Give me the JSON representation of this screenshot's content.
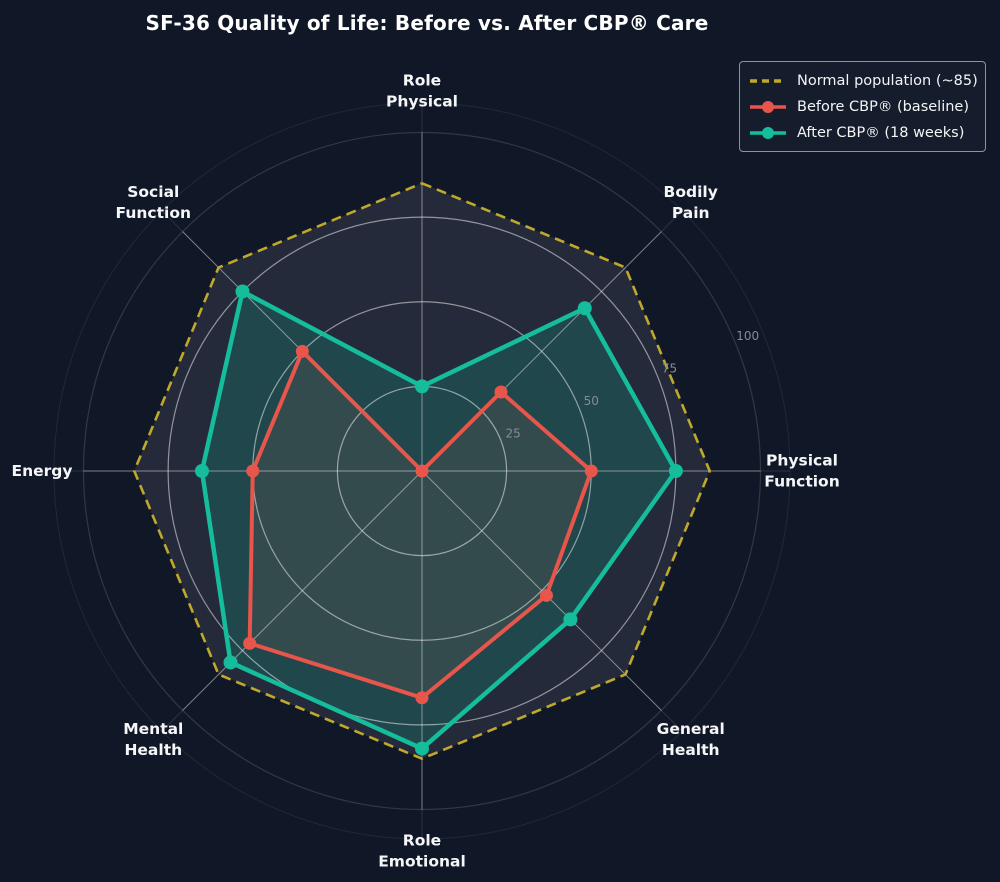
{
  "chart_data": {
    "type": "radar",
    "title": "SF-36 Quality of Life: Before vs. After CBP® Care",
    "axes": [
      {
        "label": "Role Physical",
        "lines": [
          "Role",
          "Physical"
        ]
      },
      {
        "label": "Bodily Pain",
        "lines": [
          "Bodily",
          "Pain"
        ]
      },
      {
        "label": "Physical Function",
        "lines": [
          "Physical",
          "Function"
        ]
      },
      {
        "label": "General Health",
        "lines": [
          "General",
          "Health"
        ]
      },
      {
        "label": "Role Emotional",
        "lines": [
          "Role",
          "Emotional"
        ]
      },
      {
        "label": "Mental Health",
        "lines": [
          "Mental",
          "Health"
        ]
      },
      {
        "label": "Energy",
        "lines": [
          "Energy"
        ]
      },
      {
        "label": "Social Function",
        "lines": [
          "Social",
          "Function"
        ]
      }
    ],
    "r_axis": {
      "ticks": [
        25,
        50,
        75,
        100
      ],
      "max": 100,
      "tick_angle_deg": 22.5
    },
    "series": [
      {
        "name": "Normal population (~85)",
        "color": "#bfa92c",
        "line_style": "dashed",
        "markers": false,
        "fill_opacity": 0.1,
        "fill_color": "#d8dade",
        "values": [
          85,
          85,
          85,
          85,
          85,
          85,
          85,
          85
        ]
      },
      {
        "name": "Before CBP® (baseline)",
        "color": "#e8554a",
        "line_style": "solid",
        "markers": true,
        "fill_opacity": 0.13,
        "fill_color": "#e8554a",
        "values": [
          0,
          33,
          50,
          52,
          67,
          72,
          50,
          50
        ]
      },
      {
        "name": "After CBP® (18 weeks)",
        "color": "#15bd9c",
        "line_style": "solid",
        "markers": true,
        "fill_opacity": 0.2,
        "fill_color": "#15bd9c",
        "values": [
          25,
          68,
          75,
          62,
          82,
          80,
          65,
          75
        ]
      }
    ],
    "style": {
      "background": "#101726",
      "grid_color": "#ffffff",
      "tick_label_color": "#868c94",
      "axis_label_color": "#f5f6f8"
    },
    "legend_position": "top-right"
  }
}
